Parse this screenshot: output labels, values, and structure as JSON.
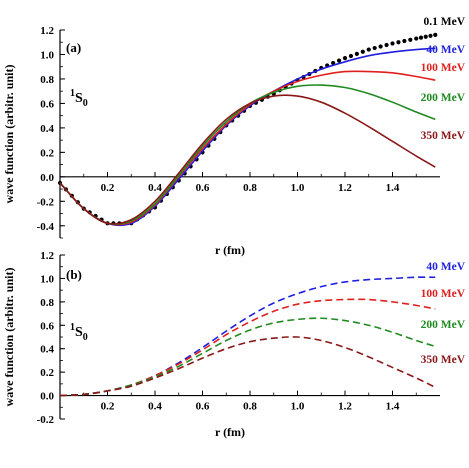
{
  "chart_data": [
    {
      "panel": "(a)",
      "type": "line",
      "state": {
        "base": "1",
        "letter": "S",
        "sub": "0"
      },
      "xlabel": "r (fm)",
      "ylabel": "wave function  (arbitr. unit)",
      "xlim": [
        0.0,
        1.6
      ],
      "ylim": [
        -0.5,
        1.2
      ],
      "xticks": [
        "0.2",
        "0.4",
        "0.6",
        "0.8",
        "1.0",
        "1.2",
        "1.4"
      ],
      "yticks": [
        "-0.4",
        "-0.2",
        "0.0",
        "0.2",
        "0.4",
        "0.6",
        "0.8",
        "1.0",
        "1.2"
      ],
      "series": [
        {
          "name": "0.1 MeV",
          "color": "#000000",
          "style": "dotted",
          "x": [
            0.0,
            0.1,
            0.2,
            0.3,
            0.4,
            0.5,
            0.6,
            0.7,
            0.8,
            0.9,
            1.0,
            1.1,
            1.2,
            1.3,
            1.4,
            1.5,
            1.58
          ],
          "y": [
            -0.05,
            -0.26,
            -0.38,
            -0.38,
            -0.25,
            -0.03,
            0.2,
            0.42,
            0.58,
            0.68,
            0.79,
            0.89,
            0.97,
            1.04,
            1.09,
            1.13,
            1.16
          ]
        },
        {
          "name": "40 MeV",
          "color": "#1f1fe0",
          "style": "solid",
          "x": [
            0.0,
            0.1,
            0.2,
            0.3,
            0.4,
            0.5,
            0.6,
            0.7,
            0.8,
            0.9,
            1.0,
            1.1,
            1.2,
            1.3,
            1.4,
            1.5,
            1.58
          ],
          "y": [
            -0.05,
            -0.26,
            -0.38,
            -0.38,
            -0.24,
            -0.02,
            0.21,
            0.42,
            0.58,
            0.7,
            0.8,
            0.88,
            0.94,
            0.99,
            1.02,
            1.04,
            1.05
          ]
        },
        {
          "name": "100 MeV",
          "color": "#e01f1f",
          "style": "solid",
          "x": [
            0.0,
            0.1,
            0.2,
            0.3,
            0.4,
            0.5,
            0.6,
            0.7,
            0.8,
            0.9,
            1.0,
            1.1,
            1.2,
            1.3,
            1.4,
            1.5,
            1.58
          ],
          "y": [
            -0.05,
            -0.26,
            -0.38,
            -0.37,
            -0.23,
            0.0,
            0.23,
            0.43,
            0.59,
            0.7,
            0.78,
            0.83,
            0.86,
            0.86,
            0.85,
            0.82,
            0.79
          ]
        },
        {
          "name": "200 MeV",
          "color": "#1f8a1f",
          "style": "solid",
          "x": [
            0.0,
            0.1,
            0.2,
            0.3,
            0.4,
            0.5,
            0.6,
            0.7,
            0.8,
            0.9,
            1.0,
            1.1,
            1.2,
            1.3,
            1.4,
            1.5,
            1.58
          ],
          "y": [
            -0.05,
            -0.26,
            -0.38,
            -0.36,
            -0.22,
            0.01,
            0.25,
            0.45,
            0.6,
            0.69,
            0.74,
            0.75,
            0.73,
            0.68,
            0.61,
            0.53,
            0.47
          ]
        },
        {
          "name": "350 MeV",
          "color": "#8a1818",
          "style": "solid",
          "x": [
            0.0,
            0.1,
            0.2,
            0.3,
            0.4,
            0.5,
            0.6,
            0.7,
            0.8,
            0.9,
            1.0,
            1.1,
            1.2,
            1.3,
            1.4,
            1.5,
            1.58
          ],
          "y": [
            -0.05,
            -0.26,
            -0.38,
            -0.35,
            -0.2,
            0.03,
            0.27,
            0.47,
            0.6,
            0.66,
            0.66,
            0.61,
            0.52,
            0.41,
            0.29,
            0.17,
            0.08
          ]
        }
      ]
    },
    {
      "panel": "(b)",
      "type": "line",
      "state": {
        "base": "1",
        "letter": "S",
        "sub": "0"
      },
      "xlabel": "r (fm)",
      "ylabel": "wave function  (arbitr. unit)",
      "xlim": [
        0.0,
        1.6
      ],
      "ylim": [
        -0.2,
        1.2
      ],
      "xticks": [
        "0.2",
        "0.4",
        "0.6",
        "0.8",
        "1.0",
        "1.2",
        "1.4"
      ],
      "yticks": [
        "-0.2",
        "0.0",
        "0.2",
        "0.4",
        "0.6",
        "0.8",
        "1.0",
        "1.2"
      ],
      "series": [
        {
          "name": "40 MeV",
          "color": "#1f1fe0",
          "style": "dashed",
          "x": [
            0.0,
            0.1,
            0.2,
            0.3,
            0.4,
            0.5,
            0.6,
            0.7,
            0.8,
            0.9,
            1.0,
            1.1,
            1.2,
            1.3,
            1.4,
            1.5,
            1.58
          ],
          "y": [
            0.0,
            0.01,
            0.04,
            0.09,
            0.17,
            0.28,
            0.41,
            0.55,
            0.68,
            0.79,
            0.87,
            0.93,
            0.97,
            0.99,
            1.0,
            1.01,
            1.01
          ]
        },
        {
          "name": "100 MeV",
          "color": "#e01f1f",
          "style": "dashed",
          "x": [
            0.0,
            0.1,
            0.2,
            0.3,
            0.4,
            0.5,
            0.6,
            0.7,
            0.8,
            0.9,
            1.0,
            1.1,
            1.2,
            1.3,
            1.4,
            1.5,
            1.58
          ],
          "y": [
            0.0,
            0.01,
            0.04,
            0.09,
            0.17,
            0.27,
            0.39,
            0.52,
            0.63,
            0.72,
            0.78,
            0.81,
            0.82,
            0.82,
            0.8,
            0.77,
            0.74
          ]
        },
        {
          "name": "200 MeV",
          "color": "#1f8a1f",
          "style": "dashed",
          "x": [
            0.0,
            0.1,
            0.2,
            0.3,
            0.4,
            0.5,
            0.6,
            0.7,
            0.8,
            0.9,
            1.0,
            1.1,
            1.2,
            1.3,
            1.4,
            1.5,
            1.58
          ],
          "y": [
            0.0,
            0.01,
            0.04,
            0.09,
            0.16,
            0.25,
            0.36,
            0.47,
            0.56,
            0.62,
            0.65,
            0.66,
            0.64,
            0.6,
            0.54,
            0.47,
            0.42
          ]
        },
        {
          "name": "350 MeV",
          "color": "#8a1818",
          "style": "dashed",
          "x": [
            0.0,
            0.1,
            0.2,
            0.3,
            0.4,
            0.5,
            0.6,
            0.7,
            0.8,
            0.9,
            1.0,
            1.1,
            1.2,
            1.3,
            1.4,
            1.5,
            1.58
          ],
          "y": [
            0.0,
            0.01,
            0.04,
            0.08,
            0.15,
            0.23,
            0.32,
            0.4,
            0.46,
            0.49,
            0.5,
            0.47,
            0.41,
            0.33,
            0.24,
            0.15,
            0.07
          ]
        }
      ]
    }
  ]
}
